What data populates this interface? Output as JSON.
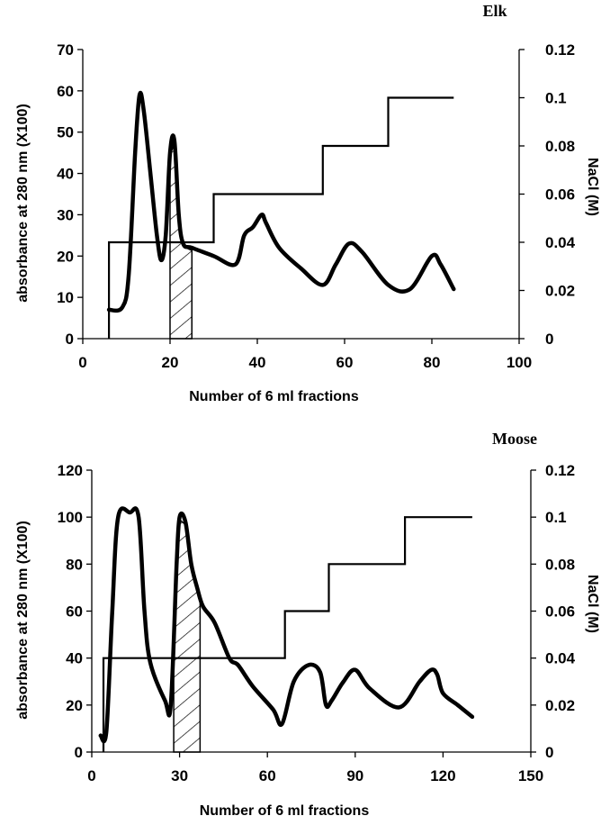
{
  "chart_data": [
    {
      "type": "line",
      "title": "Elk",
      "xlabel": "Number of 6 ml fractions",
      "ylabel": "absorbance at 280 nm (X100)",
      "y2label": "NaCl (M)",
      "xlim": [
        0,
        100
      ],
      "ylim": [
        0,
        70
      ],
      "y2lim": [
        0,
        0.12
      ],
      "x_ticks": [
        "0",
        "20",
        "40",
        "60",
        "80",
        "100"
      ],
      "y_ticks": [
        "0",
        "10",
        "20",
        "30",
        "40",
        "50",
        "60",
        "70"
      ],
      "y2_ticks": [
        "0",
        "0.02",
        "0.04",
        "0.06",
        "0.08",
        "0.1",
        "0.12"
      ],
      "series": [
        {
          "axis": "left",
          "points": [
            [
              6,
              7
            ],
            [
              9,
              7.5
            ],
            [
              10.5,
              15
            ],
            [
              12,
              45
            ],
            [
              13,
              59
            ],
            [
              14,
              55
            ],
            [
              15.5,
              40
            ],
            [
              17,
              25
            ],
            [
              18,
              19
            ],
            [
              19,
              25
            ],
            [
              20,
              45
            ],
            [
              21,
              48
            ],
            [
              22,
              30
            ],
            [
              23,
              23
            ],
            [
              25,
              22
            ],
            [
              30,
              20
            ],
            [
              35,
              18
            ],
            [
              37,
              25
            ],
            [
              39,
              27
            ],
            [
              41,
              30
            ],
            [
              42,
              28
            ],
            [
              45,
              22
            ],
            [
              50,
              17
            ],
            [
              55,
              13
            ],
            [
              58,
              18
            ],
            [
              61,
              23
            ],
            [
              64,
              21
            ],
            [
              70,
              13
            ],
            [
              75,
              12
            ],
            [
              80,
              20
            ],
            [
              82,
              18
            ],
            [
              85,
              12
            ]
          ]
        },
        {
          "axis": "right",
          "style": "step",
          "points": [
            [
              6,
              0
            ],
            [
              6,
              0.04
            ],
            [
              30,
              0.04
            ],
            [
              30,
              0.06
            ],
            [
              55,
              0.06
            ],
            [
              55,
              0.08
            ],
            [
              70,
              0.08
            ],
            [
              70,
              0.1
            ],
            [
              85,
              0.1
            ]
          ]
        }
      ],
      "hatched_region": {
        "x_from": 20,
        "x_to": 25
      }
    },
    {
      "type": "line",
      "title": "Moose",
      "xlabel": "Number of 6 ml fractions",
      "ylabel": "absorbance at 280 nm (X100)",
      "y2label": "NaCl (M)",
      "xlim": [
        0,
        150
      ],
      "ylim": [
        0,
        120
      ],
      "y2lim": [
        0,
        0.12
      ],
      "x_ticks": [
        "0",
        "30",
        "60",
        "90",
        "120",
        "150"
      ],
      "y_ticks": [
        "0",
        "20",
        "40",
        "60",
        "80",
        "100",
        "120"
      ],
      "y2_ticks": [
        "0",
        "0.02",
        "0.04",
        "0.06",
        "0.08",
        "0.1",
        "0.12"
      ],
      "series": [
        {
          "axis": "left",
          "points": [
            [
              3,
              7
            ],
            [
              5,
              9
            ],
            [
              7,
              60
            ],
            [
              9,
              100
            ],
            [
              13,
              102
            ],
            [
              16,
              100
            ],
            [
              18,
              60
            ],
            [
              20,
              38
            ],
            [
              25,
              22
            ],
            [
              27,
              20
            ],
            [
              29,
              80
            ],
            [
              30,
              100
            ],
            [
              32,
              98
            ],
            [
              34,
              80
            ],
            [
              36,
              70
            ],
            [
              38,
              62
            ],
            [
              42,
              55
            ],
            [
              47,
              40
            ],
            [
              50,
              37
            ],
            [
              55,
              28
            ],
            [
              62,
              18
            ],
            [
              65,
              12
            ],
            [
              69,
              30
            ],
            [
              74,
              37
            ],
            [
              78,
              34
            ],
            [
              80,
              20
            ],
            [
              82,
              22
            ],
            [
              86,
              30
            ],
            [
              90,
              35
            ],
            [
              95,
              27
            ],
            [
              105,
              19
            ],
            [
              112,
              30
            ],
            [
              116,
              35
            ],
            [
              118,
              33
            ],
            [
              120,
              25
            ],
            [
              125,
              20
            ],
            [
              130,
              15
            ]
          ]
        },
        {
          "axis": "right",
          "style": "step",
          "points": [
            [
              4,
              0
            ],
            [
              4,
              0.04
            ],
            [
              66,
              0.04
            ],
            [
              66,
              0.06
            ],
            [
              81,
              0.06
            ],
            [
              81,
              0.08
            ],
            [
              107,
              0.08
            ],
            [
              107,
              0.1
            ],
            [
              130,
              0.1
            ]
          ]
        }
      ],
      "hatched_region": {
        "x_from": 28,
        "x_to": 37
      }
    }
  ]
}
